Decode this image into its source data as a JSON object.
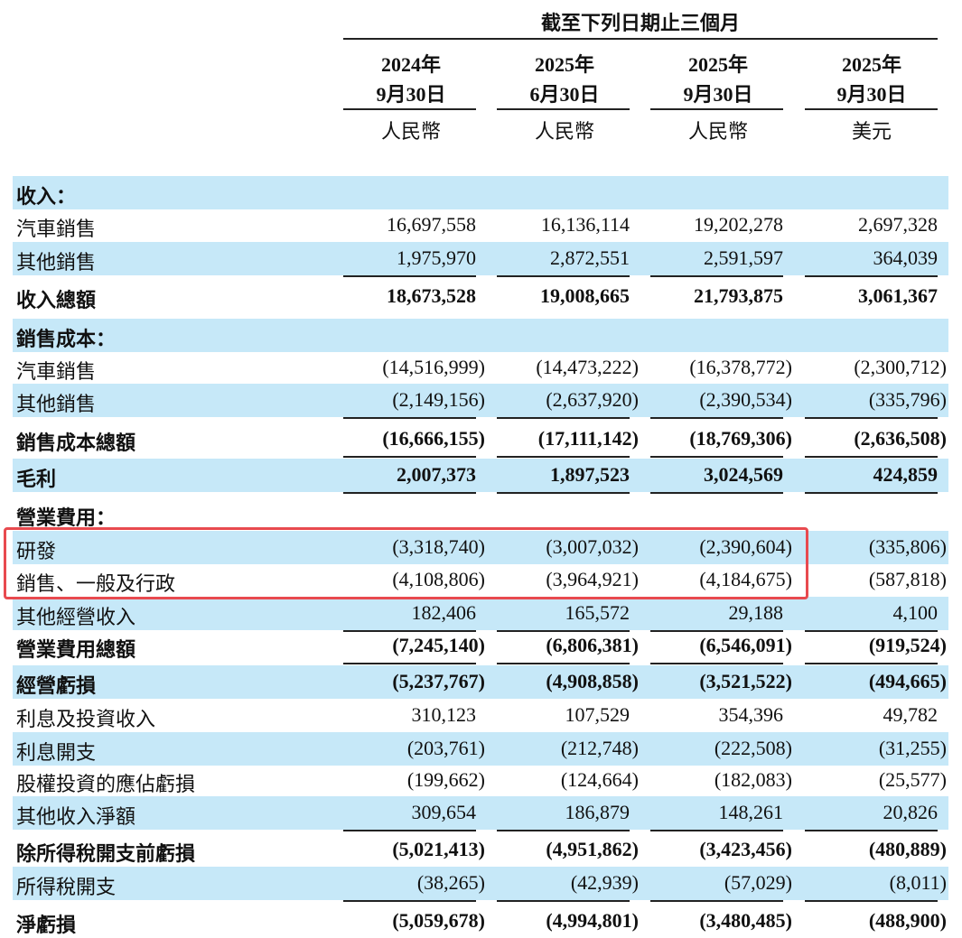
{
  "header": {
    "title": "截至下列日期止三個月",
    "columns": [
      {
        "year": "2024年",
        "date": "9月30日",
        "currency": "人民幣"
      },
      {
        "year": "2025年",
        "date": "6月30日",
        "currency": "人民幣"
      },
      {
        "year": "2025年",
        "date": "9月30日",
        "currency": "人民幣"
      },
      {
        "year": "2025年",
        "date": "9月30日",
        "currency": "美元"
      }
    ]
  },
  "table": {
    "rows": [
      [
        "收入："
      ],
      [
        "汽車銷售",
        "16,697,558",
        "16,136,114",
        "19,202,278",
        "2,697,328"
      ],
      [
        "其他銷售",
        "1,975,970",
        "2,872,551",
        "2,591,597",
        "364,039"
      ],
      [
        "收入總額",
        "18,673,528",
        "19,008,665",
        "21,793,875",
        "3,061,367"
      ],
      [
        "銷售成本："
      ],
      [
        "汽車銷售",
        "(14,516,999)",
        "(14,473,222)",
        "(16,378,772)",
        "(2,300,712)"
      ],
      [
        "其他銷售",
        "(2,149,156)",
        "(2,637,920)",
        "(2,390,534)",
        "(335,796)"
      ],
      [
        "銷售成本總額",
        "(16,666,155)",
        "(17,111,142)",
        "(18,769,306)",
        "(2,636,508)"
      ],
      [
        "毛利",
        "2,007,373",
        "1,897,523",
        "3,024,569",
        "424,859"
      ],
      [
        "營業費用："
      ],
      [
        "研發",
        "(3,318,740)",
        "(3,007,032)",
        "(2,390,604)",
        "(335,806)"
      ],
      [
        "銷售、一般及行政",
        "(4,108,806)",
        "(3,964,921)",
        "(4,184,675)",
        "(587,818)"
      ],
      [
        "其他經營收入",
        "182,406",
        "165,572",
        "29,188",
        "4,100"
      ],
      [
        "營業費用總額",
        "(7,245,140)",
        "(6,806,381)",
        "(6,546,091)",
        "(919,524)"
      ],
      [
        "經營虧損",
        "(5,237,767)",
        "(4,908,858)",
        "(3,521,522)",
        "(494,665)"
      ],
      [
        "利息及投資收入",
        "310,123",
        "107,529",
        "354,396",
        "49,782"
      ],
      [
        "利息開支",
        "(203,761)",
        "(212,748)",
        "(222,508)",
        "(31,255)"
      ],
      [
        "股權投資的應佔虧損",
        "(199,662)",
        "(124,664)",
        "(182,083)",
        "(25,577)"
      ],
      [
        "其他收入淨額",
        "309,654",
        "186,879",
        "148,261",
        "20,826"
      ],
      [
        "除所得稅開支前虧損",
        "(5,021,413)",
        "(4,951,862)",
        "(3,423,456)",
        "(480,889)"
      ],
      [
        "所得稅開支",
        "(38,265)",
        "(42,939)",
        "(57,029)",
        "(8,011)"
      ],
      [
        "淨虧損",
        "(5,059,678)",
        "(4,994,801)",
        "(3,480,485)",
        "(488,900)"
      ]
    ]
  }
}
